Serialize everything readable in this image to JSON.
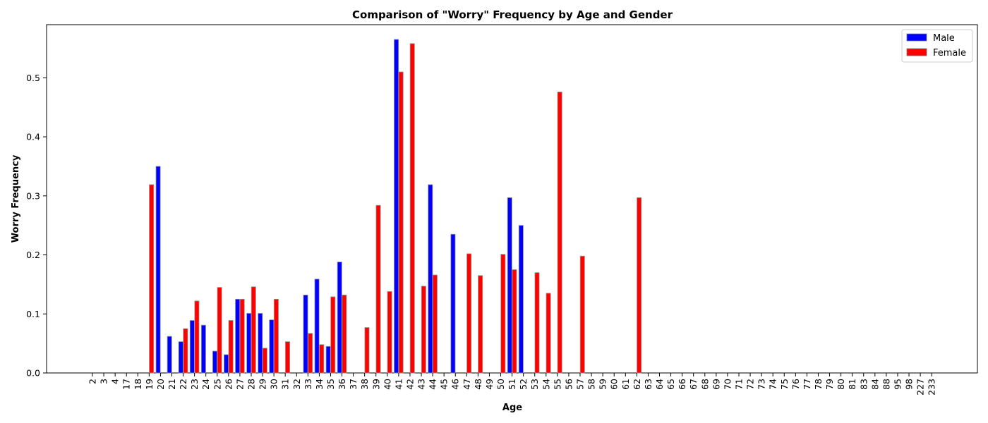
{
  "chart_data": {
    "type": "bar",
    "title": "Comparison of \"Worry\" Frequency by Age and Gender",
    "xlabel": "Age",
    "ylabel": "Worry Frequency",
    "ylim": [
      0,
      0.59
    ],
    "yticks": [
      0.0,
      0.1,
      0.2,
      0.3,
      0.4,
      0.5
    ],
    "ytick_labels": [
      "0.0",
      "0.1",
      "0.2",
      "0.3",
      "0.4",
      "0.5"
    ],
    "grid": false,
    "legend_position": "top-right",
    "categories": [
      "2",
      "3",
      "4",
      "17",
      "18",
      "19",
      "20",
      "21",
      "22",
      "23",
      "24",
      "25",
      "26",
      "27",
      "28",
      "29",
      "30",
      "31",
      "32",
      "33",
      "34",
      "35",
      "36",
      "37",
      "38",
      "39",
      "40",
      "41",
      "42",
      "43",
      "44",
      "45",
      "46",
      "47",
      "48",
      "49",
      "50",
      "51",
      "52",
      "53",
      "54",
      "55",
      "56",
      "57",
      "58",
      "59",
      "60",
      "61",
      "62",
      "63",
      "64",
      "65",
      "66",
      "67",
      "68",
      "69",
      "70",
      "71",
      "72",
      "73",
      "74",
      "75",
      "76",
      "77",
      "78",
      "79",
      "80",
      "81",
      "83",
      "84",
      "88",
      "95",
      "98",
      "227",
      "233"
    ],
    "series": [
      {
        "name": "Male",
        "color": "#0000ff",
        "values": [
          0,
          0,
          0,
          0,
          0,
          0,
          0.35,
          0.062,
          0.053,
          0.089,
          0.081,
          0.037,
          0.031,
          0.125,
          0.101,
          0.101,
          0.09,
          0,
          0,
          0.132,
          0.159,
          0.045,
          0.188,
          0,
          0,
          0,
          0,
          0.565,
          0,
          0,
          0.319,
          0,
          0.235,
          0,
          0,
          0,
          0,
          0.297,
          0.25,
          0,
          0,
          0,
          0,
          0,
          0,
          0,
          0,
          0,
          0,
          0,
          0,
          0,
          0,
          0,
          0,
          0,
          0,
          0,
          0,
          0,
          0,
          0,
          0,
          0,
          0,
          0,
          0,
          0,
          0,
          0,
          0,
          0,
          0,
          0,
          0
        ]
      },
      {
        "name": "Female",
        "color": "#ff0000",
        "values": [
          0,
          0,
          0,
          0,
          0,
          0.319,
          0,
          0,
          0.075,
          0.122,
          0,
          0.145,
          0.089,
          0.125,
          0.146,
          0.042,
          0.125,
          0.053,
          0,
          0.067,
          0.048,
          0.129,
          0.132,
          0,
          0.077,
          0.284,
          0.138,
          0.51,
          0.558,
          0.147,
          0.166,
          0,
          0,
          0.202,
          0.165,
          0,
          0.201,
          0.175,
          0,
          0.17,
          0.135,
          0.476,
          0,
          0.198,
          0,
          0,
          0,
          0,
          0.297,
          0,
          0,
          0,
          0,
          0,
          0,
          0,
          0,
          0,
          0,
          0,
          0,
          0,
          0,
          0,
          0,
          0,
          0,
          0,
          0,
          0,
          0,
          0,
          0,
          0,
          0
        ]
      }
    ]
  }
}
